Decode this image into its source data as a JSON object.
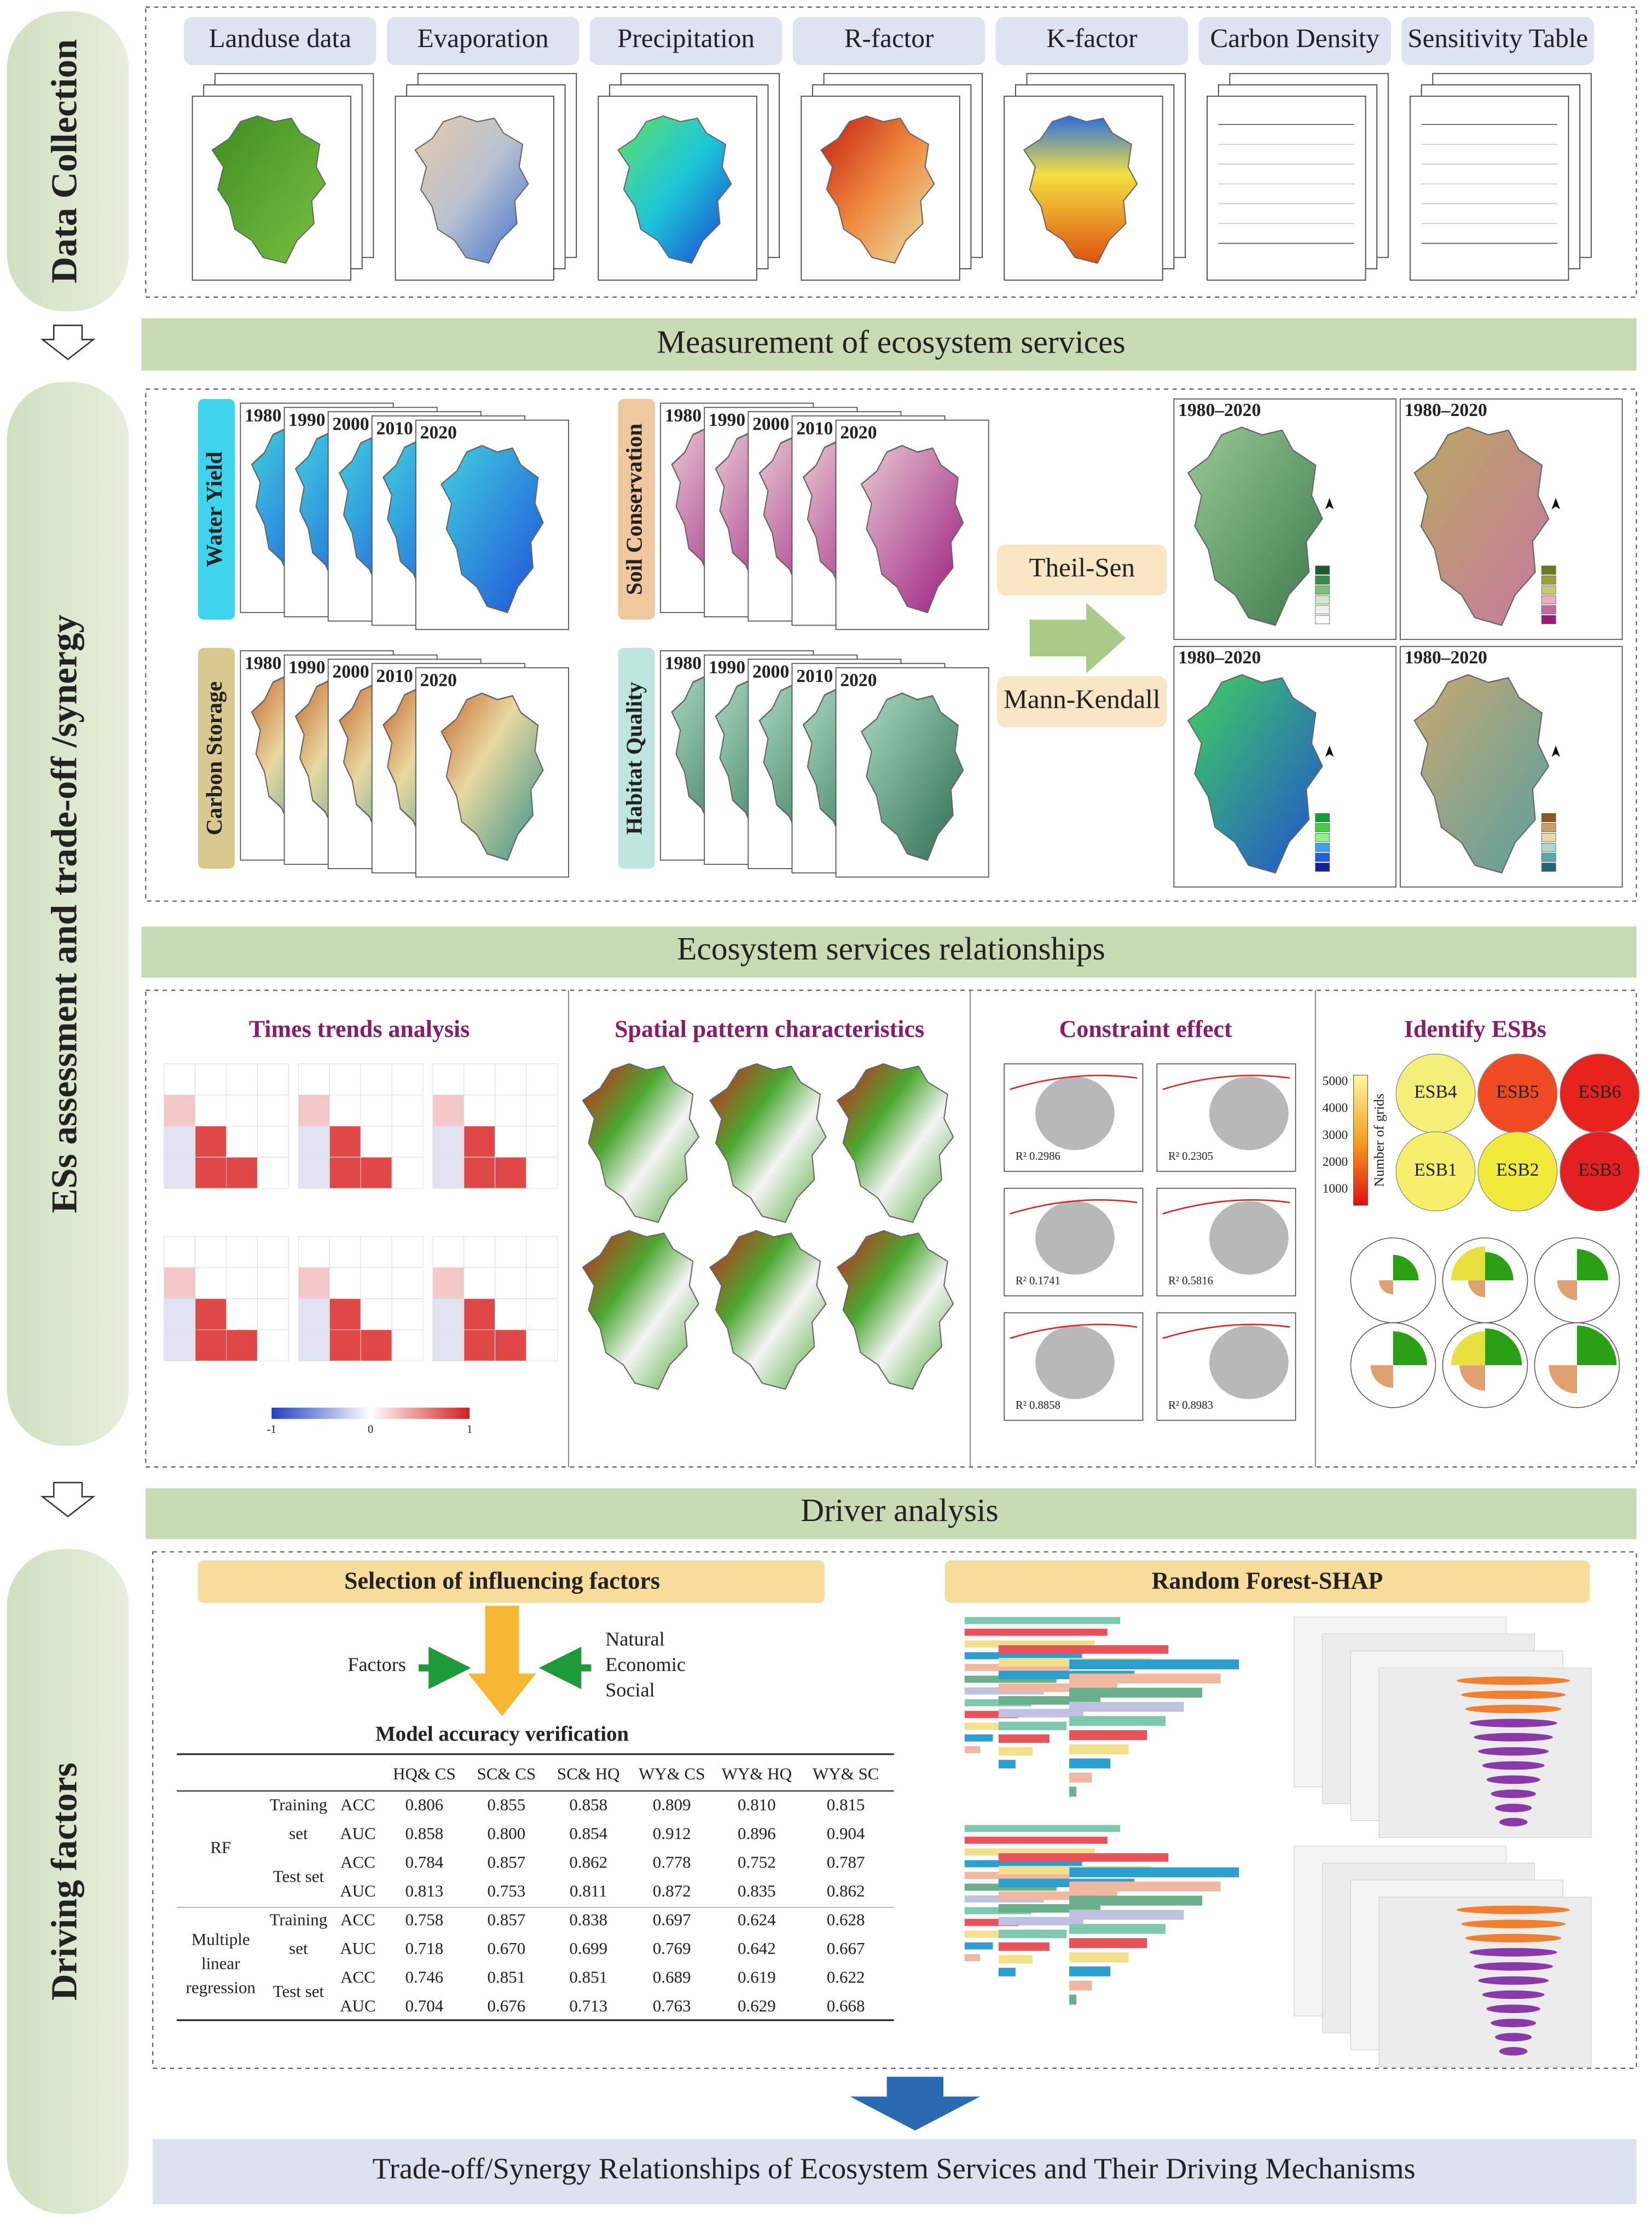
{
  "sections": {
    "data_collection": "Data Collection",
    "assessment": "ESs assessment and trade-off /synergy",
    "driving": "Driving factors"
  },
  "data_inputs": [
    "Landuse data",
    "Evaporation",
    "Precipitation",
    "R-factor",
    "K-factor",
    "Carbon Density",
    "Sensitivity Table"
  ],
  "measurement": "Measurement of ecosystem services",
  "services": [
    "Water Yield",
    "Soil Conservation",
    "Carbon Storage",
    "Habitat Quality"
  ],
  "years": [
    "1980",
    "1990",
    "2000",
    "2010",
    "2020"
  ],
  "methods": [
    "Theil-Sen",
    "Mann-Kendall"
  ],
  "trend_period": "1980–2020",
  "relationships": "Ecosystem services relationships",
  "panels": [
    "Times trends analysis",
    "Spatial pattern characteristics",
    "Constraint effect",
    "Identify ESBs"
  ],
  "colorbar_ticks": [
    "-1",
    "0",
    "1"
  ],
  "constraint_fits": [
    "R² 0.2986",
    "R² 0.2305",
    "R² 0.1741",
    "R² 0.5816",
    "R² 0.8858",
    "R² 0.8983"
  ],
  "esb_labels": [
    "ESB4",
    "ESB5",
    "ESB6",
    "ESB1",
    "ESB2",
    "ESB3"
  ],
  "esb_legend": {
    "title": "Number of grids",
    "ticks": [
      "5000",
      "4000",
      "3000",
      "2000",
      "1000"
    ]
  },
  "driver": "Driver analysis",
  "selection": "Selection of influencing factors",
  "factors": "Factors",
  "factor_types": [
    "Natural",
    "Economic",
    "Social"
  ],
  "model_title": "Model accuracy verification",
  "table": {
    "columns": [
      "HQ& CS",
      "SC& CS",
      "SC& HQ",
      "WY& CS",
      "WY& HQ",
      "WY& SC"
    ],
    "groups": [
      {
        "model": "RF",
        "sets": [
          {
            "name": "Training set",
            "rows": [
              {
                "metric": "ACC",
                "values": [
                  "0.806",
                  "0.855",
                  "0.858",
                  "0.809",
                  "0.810",
                  "0.815"
                ]
              },
              {
                "metric": "AUC",
                "values": [
                  "0.858",
                  "0.800",
                  "0.854",
                  "0.912",
                  "0.896",
                  "0.904"
                ]
              }
            ]
          },
          {
            "name": "Test set",
            "rows": [
              {
                "metric": "ACC",
                "values": [
                  "0.784",
                  "0.857",
                  "0.862",
                  "0.778",
                  "0.752",
                  "0.787"
                ]
              },
              {
                "metric": "AUC",
                "values": [
                  "0.813",
                  "0.753",
                  "0.811",
                  "0.872",
                  "0.835",
                  "0.862"
                ]
              }
            ]
          }
        ]
      },
      {
        "model": "Multiple linear regression",
        "sets": [
          {
            "name": "Training set",
            "rows": [
              {
                "metric": "ACC",
                "values": [
                  "0.758",
                  "0.857",
                  "0.838",
                  "0.697",
                  "0.624",
                  "0.628"
                ]
              },
              {
                "metric": "AUC",
                "values": [
                  "0.718",
                  "0.670",
                  "0.699",
                  "0.769",
                  "0.642",
                  "0.667"
                ]
              }
            ]
          },
          {
            "name": "Test set",
            "rows": [
              {
                "metric": "ACC",
                "values": [
                  "0.746",
                  "0.851",
                  "0.851",
                  "0.689",
                  "0.619",
                  "0.622"
                ]
              },
              {
                "metric": "AUC",
                "values": [
                  "0.704",
                  "0.676",
                  "0.713",
                  "0.763",
                  "0.629",
                  "0.668"
                ]
              }
            ]
          }
        ]
      }
    ]
  },
  "rf_shap": "Random Forest-SHAP",
  "footer": "Trade-off/Synergy Relationships of Ecosystem Services and Their Driving Mechanisms"
}
